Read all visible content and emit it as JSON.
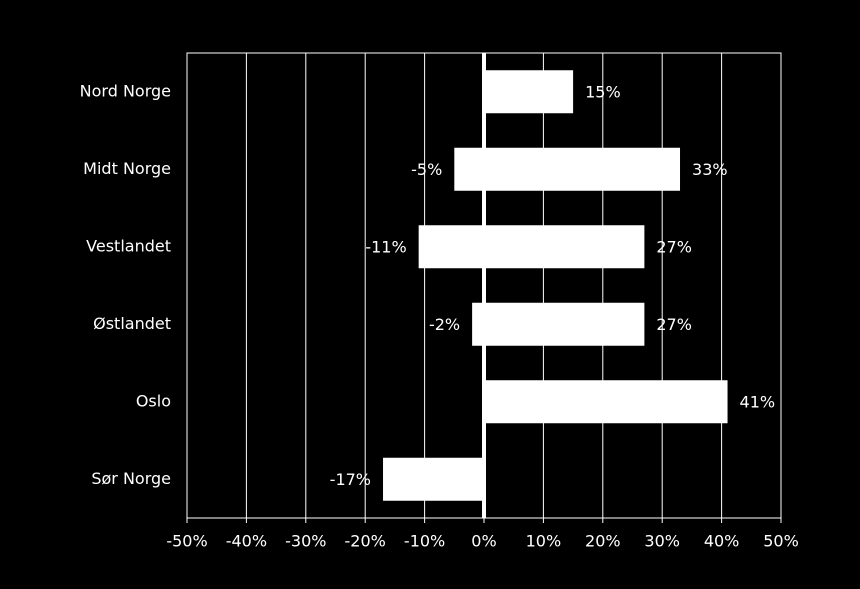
{
  "chart_data": {
    "type": "bar",
    "orientation": "horizontal",
    "categories": [
      "Nord Norge",
      "Midt Norge",
      "Vestlandet",
      "Østlandet",
      "Oslo",
      "Sør Norge"
    ],
    "series": [
      {
        "color": "#ffffff",
        "values": [
          null,
          -5,
          -11,
          -2,
          null,
          -17
        ],
        "value_labels": [
          null,
          "-5%",
          "-11%",
          "-2%",
          null,
          "-17%"
        ]
      },
      {
        "color": "#ffffff",
        "values": [
          15,
          33,
          27,
          27,
          41,
          null
        ],
        "value_labels": [
          "15%",
          "33%",
          "27%",
          "27%",
          "41%",
          null
        ]
      }
    ],
    "xlim": [
      -50,
      50
    ],
    "xticks": [
      {
        "value": -50,
        "label": "-50%"
      },
      {
        "value": -40,
        "label": "-40%"
      },
      {
        "value": -30,
        "label": "-30%"
      },
      {
        "value": -20,
        "label": "-20%"
      },
      {
        "value": -10,
        "label": "-10%"
      },
      {
        "value": 0,
        "label": "0%"
      },
      {
        "value": 10,
        "label": "10%"
      },
      {
        "value": 20,
        "label": "20%"
      },
      {
        "value": 30,
        "label": "30%"
      },
      {
        "value": 40,
        "label": "40%"
      },
      {
        "value": 50,
        "label": "50%"
      }
    ],
    "grid": true
  }
}
